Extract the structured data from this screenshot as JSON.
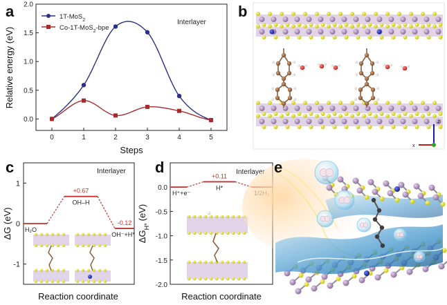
{
  "letters": {
    "a": "a",
    "b": "b",
    "c": "c",
    "d": "d",
    "e": "e"
  },
  "colors": {
    "blue": "#2b2f86",
    "red": "#a82b2b",
    "axis": "#222222"
  },
  "chart_data": [
    {
      "id": "a",
      "type": "line",
      "annotation": "Interlayer",
      "xlabel": "Steps",
      "ylabel": "Relative energy (eV)",
      "xlim": [
        -0.5,
        5.5
      ],
      "ylim": [
        -0.2,
        2.0
      ],
      "xticks": [
        "0",
        "1",
        "2",
        "3",
        "4",
        "5"
      ],
      "yticks": [
        "0.0",
        "0.5",
        "1.0",
        "1.5",
        "2.0"
      ],
      "ytick_values": [
        0.0,
        0.5,
        1.0,
        1.5,
        2.0
      ],
      "legend_position": "top-left",
      "series": [
        {
          "name": "1T-MoS",
          "name_sub": "2",
          "name_tail": "",
          "color": "#2b2f86",
          "marker": "circle",
          "x": [
            0,
            1,
            2,
            3,
            4,
            5
          ],
          "y": [
            0.0,
            0.59,
            1.61,
            1.51,
            0.4,
            -0.02
          ]
        },
        {
          "name": "Co-1T-MoS",
          "name_sub": "2",
          "name_tail": "-bpe",
          "color": "#a82b2b",
          "marker": "square",
          "x": [
            0,
            1,
            2,
            3,
            4,
            5
          ],
          "y": [
            0.0,
            0.32,
            0.06,
            0.21,
            0.14,
            -0.02
          ]
        }
      ]
    },
    {
      "id": "c",
      "type": "line",
      "annotation": "Interlayer",
      "xlabel": "Reaction coordinate",
      "ylabel": "ΔG (eV)",
      "ylim": [
        -1.5,
        1.5
      ],
      "yticks": [
        "1",
        "0",
        "-1"
      ],
      "ytick_values": [
        1,
        0,
        -1
      ],
      "states": [
        {
          "label": "H₂O",
          "value": 0.0
        },
        {
          "label": "OH–H",
          "value": 0.67,
          "value_label": "+0.67"
        },
        {
          "label": "OH⁻+H*",
          "value": -0.12,
          "value_label": "-0.12"
        }
      ]
    },
    {
      "id": "d",
      "type": "line",
      "annotation": "Interlayer",
      "xlabel": "Reaction coordinate",
      "ylabel": "ΔG",
      "ylabel_sub": "H*",
      "ylabel_unit": "(eV)",
      "ylim": [
        -2.0,
        0.5
      ],
      "yticks": [
        "0.0",
        "-0.5",
        "-1.0",
        "-1.5",
        "-2.0"
      ],
      "ytick_values": [
        0.0,
        -0.5,
        -1.0,
        -1.5,
        -2.0
      ],
      "states": [
        {
          "label": "H⁺+e⁻",
          "value": 0.0
        },
        {
          "label": "H*",
          "value": 0.11,
          "value_label": "+0.11"
        },
        {
          "label": "1/2H₂",
          "value": 0.0
        }
      ]
    }
  ],
  "axes_triad": {
    "x": "x",
    "z": "z"
  }
}
